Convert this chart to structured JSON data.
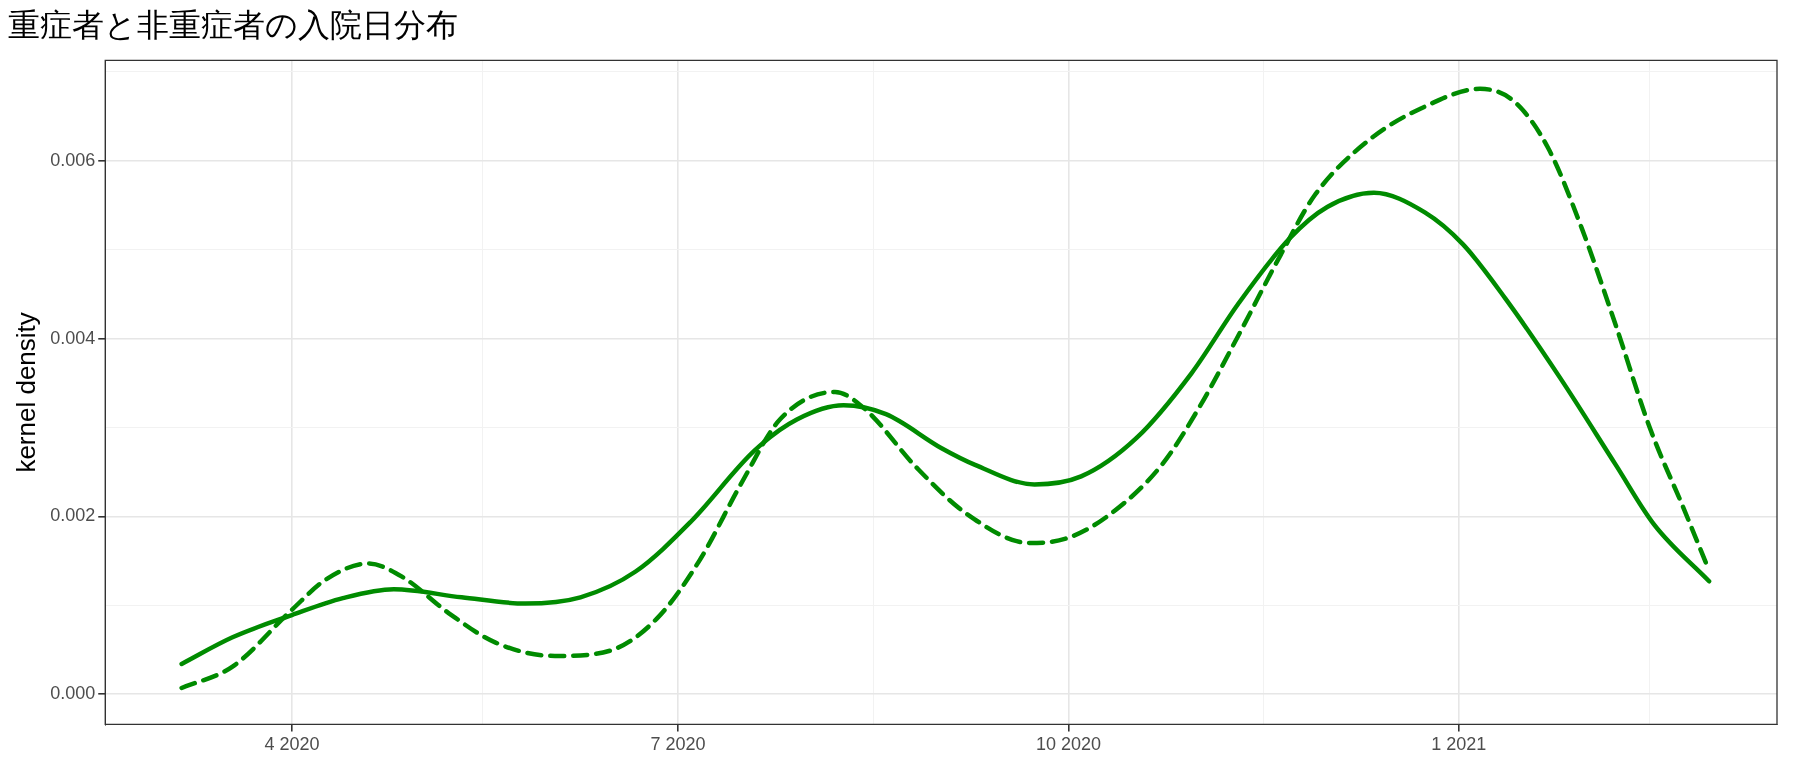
{
  "chart_data": {
    "type": "line",
    "title": "重症者と非重症者の入院日分布",
    "ylabel": "kernel density",
    "xlim": [
      "2020-02-17",
      "2021-03-17"
    ],
    "xticks": [
      {
        "value": "2020-04-01",
        "label": "4 2020"
      },
      {
        "value": "2020-05-16",
        "label": null
      },
      {
        "value": "2020-07-01",
        "label": "7 2020"
      },
      {
        "value": "2020-08-16",
        "label": null
      },
      {
        "value": "2020-10-01",
        "label": "10 2020"
      },
      {
        "value": "2020-11-16",
        "label": null
      },
      {
        "value": "2021-01-01",
        "label": "1 2021"
      },
      {
        "value": "2021-02-15",
        "label": null
      }
    ],
    "ylim": [
      -0.00034,
      0.00713
    ],
    "yticks": [
      {
        "value": 0,
        "label": "0.000"
      },
      {
        "value": 0.001,
        "label": null
      },
      {
        "value": 0.002,
        "label": "0.002"
      },
      {
        "value": 0.003,
        "label": null
      },
      {
        "value": 0.004,
        "label": "0.004"
      },
      {
        "value": 0.005,
        "label": null
      },
      {
        "value": 0.006,
        "label": "0.006"
      },
      {
        "value": 0.007,
        "label": null
      }
    ],
    "grid": true,
    "marker": "none",
    "series": [
      {
        "color": "#008b00",
        "line_style": "solid",
        "x": [
          "2020-03-06",
          "2020-03-18",
          "2020-04-01",
          "2020-04-13",
          "2020-04-25",
          "2020-05-11",
          "2020-05-26",
          "2020-06-08",
          "2020-06-21",
          "2020-07-04",
          "2020-07-19",
          "2020-07-29",
          "2020-08-09",
          "2020-08-19",
          "2020-09-01",
          "2020-09-09",
          "2020-09-23",
          "2020-10-04",
          "2020-10-17",
          "2020-10-30",
          "2020-11-10",
          "2020-11-22",
          "2020-12-01",
          "2020-12-12",
          "2020-12-24",
          "2021-01-02",
          "2021-01-12",
          "2021-01-25",
          "2021-02-07",
          "2021-02-16",
          "2021-03-01"
        ],
        "values": [
          0.00034,
          0.00064,
          0.00089,
          0.00108,
          0.00118,
          0.00109,
          0.00102,
          0.00109,
          0.00138,
          0.00194,
          0.00274,
          0.00309,
          0.00325,
          0.00315,
          0.00277,
          0.00258,
          0.00236,
          0.00245,
          0.00288,
          0.00361,
          0.00439,
          0.00512,
          0.00548,
          0.00564,
          0.00542,
          0.00506,
          0.00445,
          0.00355,
          0.00258,
          0.00191,
          0.00127
        ]
      },
      {
        "color": "#008b00",
        "line_style": "dashed",
        "x": [
          "2020-03-06",
          "2020-03-18",
          "2020-04-01",
          "2020-04-09",
          "2020-04-19",
          "2020-04-27",
          "2020-05-08",
          "2020-05-19",
          "2020-06-02",
          "2020-06-15",
          "2020-06-26",
          "2020-07-06",
          "2020-07-16",
          "2020-07-25",
          "2020-08-07",
          "2020-08-14",
          "2020-08-26",
          "2020-09-07",
          "2020-09-22",
          "2020-10-01",
          "2020-10-11",
          "2020-10-23",
          "2020-11-01",
          "2020-11-10",
          "2020-11-20",
          "2020-11-28",
          "2020-12-11",
          "2020-12-24",
          "2021-01-06",
          "2021-01-14",
          "2021-01-22",
          "2021-01-30",
          "2021-02-07",
          "2021-02-15",
          "2021-02-23",
          "2021-03-01"
        ],
        "values": [
          7e-05,
          0.00031,
          0.00095,
          0.00129,
          0.00147,
          0.00132,
          0.00091,
          0.00058,
          0.00043,
          0.00049,
          0.00085,
          0.0015,
          0.00238,
          0.00309,
          0.0034,
          0.00321,
          0.00256,
          0.00203,
          0.0017,
          0.00176,
          0.00203,
          0.00258,
          0.00324,
          0.00403,
          0.00494,
          0.00561,
          0.00624,
          0.00661,
          0.00681,
          0.00667,
          0.00615,
          0.00524,
          0.00415,
          0.003,
          0.00209,
          0.00139
        ]
      }
    ]
  }
}
